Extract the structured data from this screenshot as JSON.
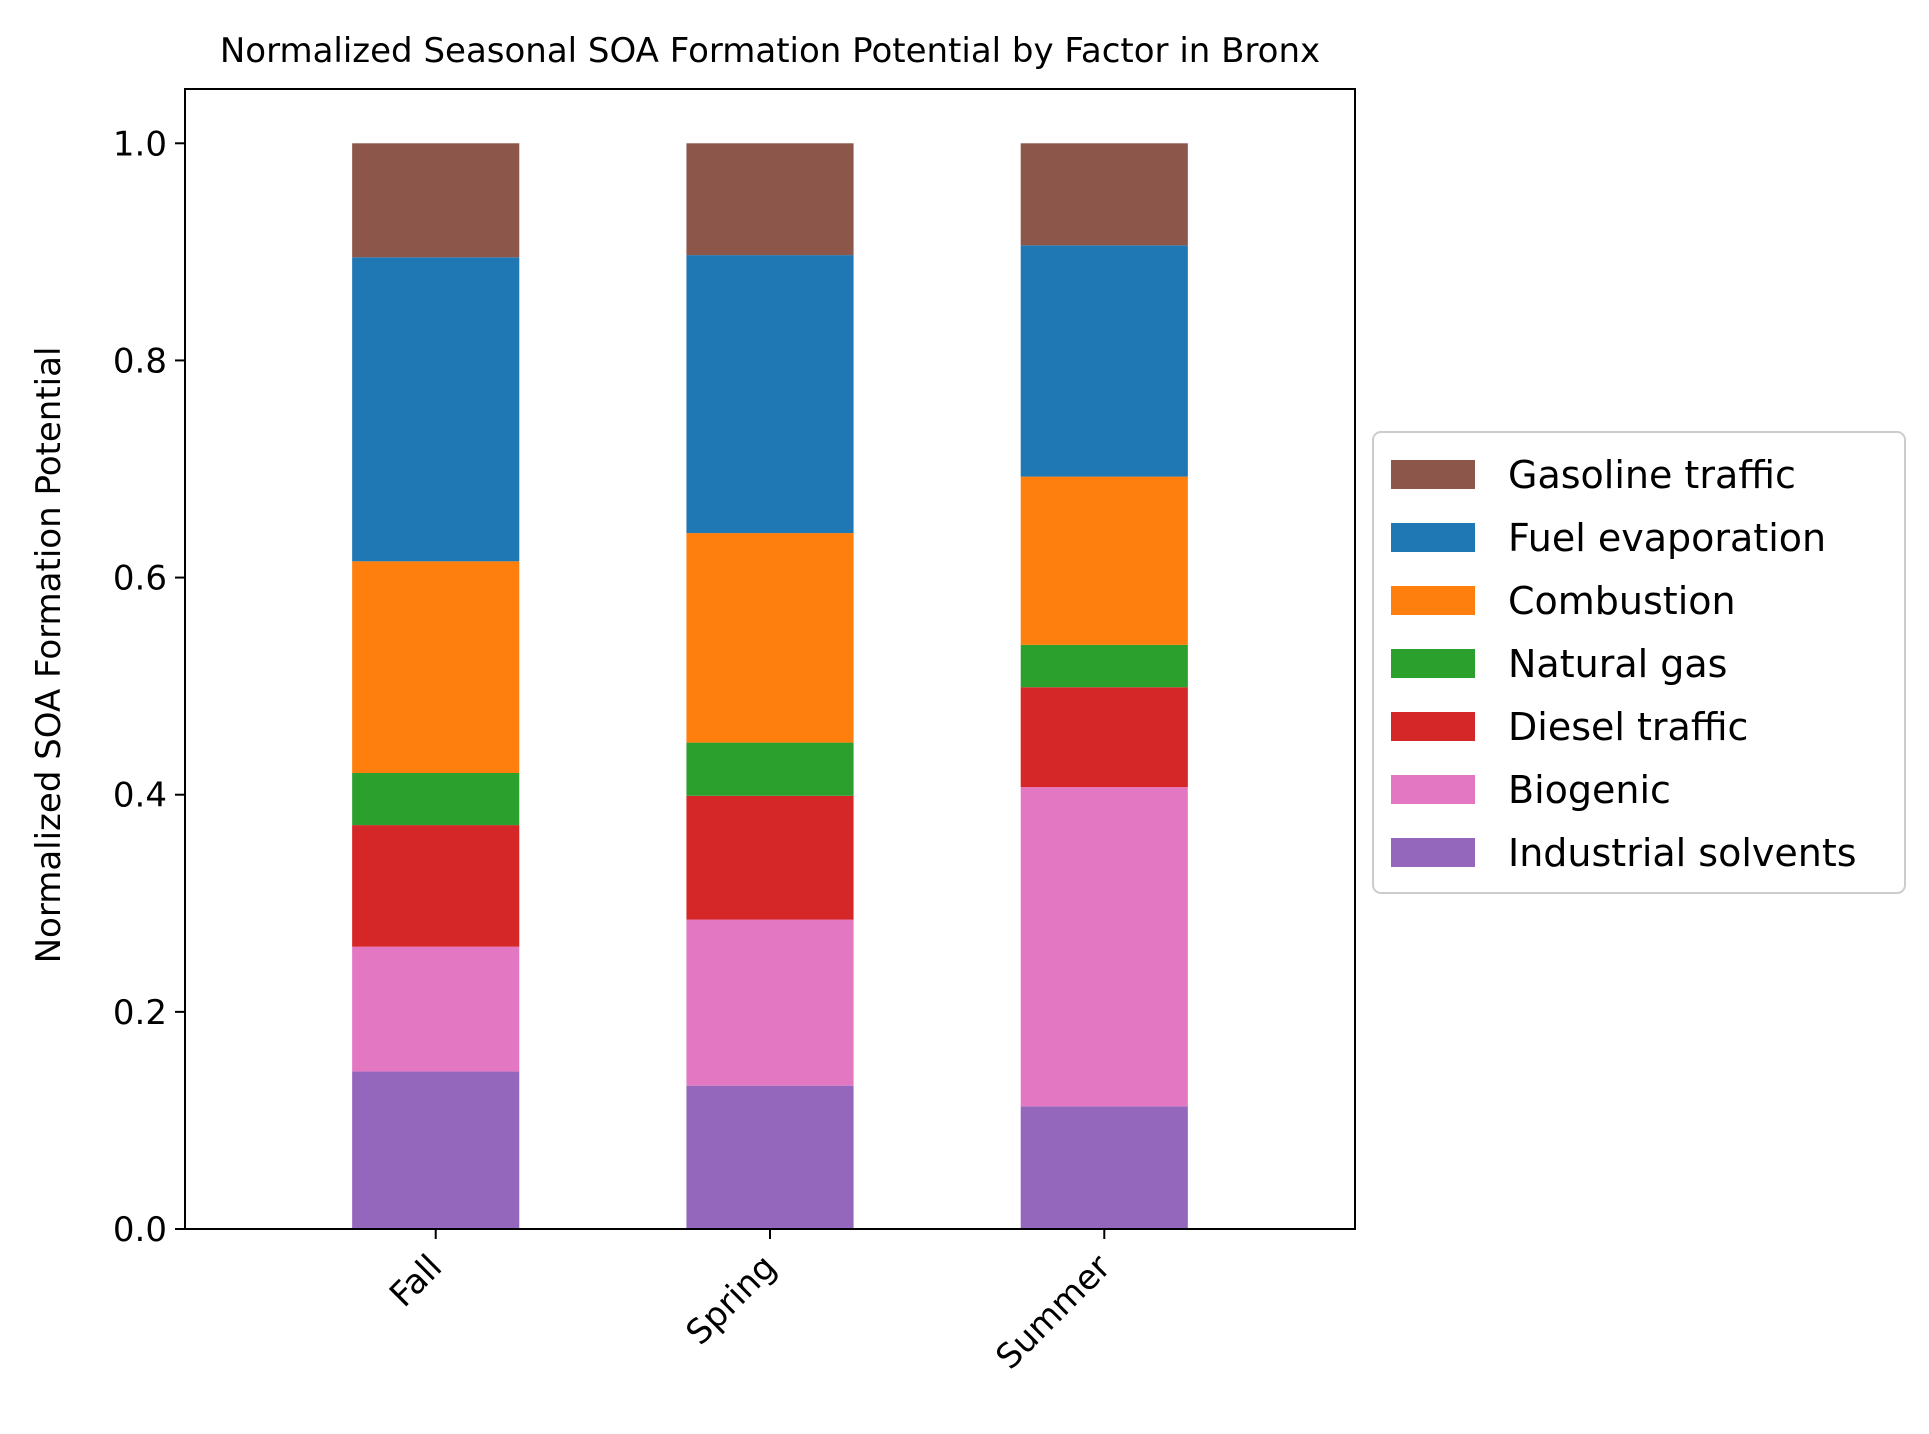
{
  "chart_data": {
    "type": "bar",
    "stacked": true,
    "title": "Normalized Seasonal SOA Formation Potential by Factor in Bronx",
    "xlabel": "",
    "ylabel": "Normalized SOA Formation Potential",
    "categories": [
      "Fall",
      "Spring",
      "Summer"
    ],
    "ylim": [
      0,
      1.05
    ],
    "yticks": [
      0.0,
      0.2,
      0.4,
      0.6,
      0.8,
      1.0
    ],
    "ytick_labels": [
      "0.0",
      "0.2",
      "0.4",
      "0.6",
      "0.8",
      "1.0"
    ],
    "grid": false,
    "legend_position": "center-right-outside",
    "series": [
      {
        "name": "Industrial solvents",
        "color": "#9467bd",
        "values": [
          0.145,
          0.132,
          0.113
        ]
      },
      {
        "name": "Biogenic",
        "color": "#e377c2",
        "values": [
          0.115,
          0.153,
          0.294
        ]
      },
      {
        "name": "Diesel traffic",
        "color": "#d62728",
        "values": [
          0.112,
          0.114,
          0.092
        ]
      },
      {
        "name": "Natural gas",
        "color": "#2ca02c",
        "values": [
          0.048,
          0.049,
          0.039
        ]
      },
      {
        "name": "Combustion",
        "color": "#ff7f0e",
        "values": [
          0.195,
          0.193,
          0.155
        ]
      },
      {
        "name": "Fuel evaporation",
        "color": "#1f77b4",
        "values": [
          0.28,
          0.256,
          0.213
        ]
      },
      {
        "name": "Gasoline traffic",
        "color": "#8c564b",
        "values": [
          0.105,
          0.103,
          0.094
        ]
      }
    ]
  }
}
